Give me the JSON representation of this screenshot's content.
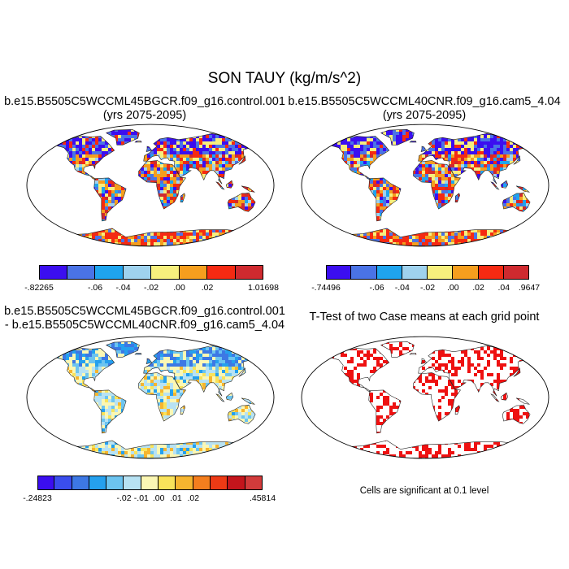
{
  "figure": {
    "title": "SON TAUY (kg/m/s^2)"
  },
  "panels": {
    "top_left": {
      "title_line1": "b.e15.B5505C5WCCML45BGCR.f09_g16.control.001",
      "title_line2": "(yrs 2075-2095)",
      "colorbar": {
        "colors": [
          "#3b0ef0",
          "#4a73e6",
          "#1fa4ee",
          "#9fd2ee",
          "#f7ef7d",
          "#f59e1e",
          "#f52a12",
          "#cf2a2f"
        ],
        "labels": [
          "-.82265",
          "-.06",
          "-.04",
          "-.02",
          ".00",
          ".02",
          "1.01698"
        ]
      }
    },
    "top_right": {
      "title_line1": "b.e15.B5505C5WCCML40CNR.f09_g16.cam5_4.04",
      "title_line2": "(yrs 2075-2095)",
      "colorbar": {
        "colors": [
          "#3b0ef0",
          "#4a73e6",
          "#1fa4ee",
          "#9fd2ee",
          "#f7ef7d",
          "#f59e1e",
          "#f52a12",
          "#cf2a2f"
        ],
        "labels": [
          "-.74496",
          "-.06",
          "-.04",
          "-.02",
          ".00",
          ".02",
          ".04",
          ".9647"
        ]
      }
    },
    "bottom_left": {
      "title_line1": "b.e15.B5505C5WCCML45BGCR.f09_g16.control.001",
      "title_line2": "- b.e15.B5505C5WCCML40CNR.f09_g16.cam5_4.04",
      "colorbar": {
        "colors": [
          "#3b0ef0",
          "#3a4ded",
          "#3d78e4",
          "#25a0ee",
          "#6cc4f0",
          "#b7e2f3",
          "#fbf7b4",
          "#f9e35a",
          "#f6b52f",
          "#f47e1e",
          "#ed3a15",
          "#c4151c",
          "#d23b3b"
        ],
        "labels": [
          "-.24823",
          "-.02",
          "-.01",
          ".00",
          ".01",
          ".02",
          ".45814"
        ]
      }
    },
    "bottom_right": {
      "title": "T-Test of two Case means at each grid point",
      "note": "Cells are significant at 0.1 level",
      "significance_color": "#ee1111"
    }
  }
}
